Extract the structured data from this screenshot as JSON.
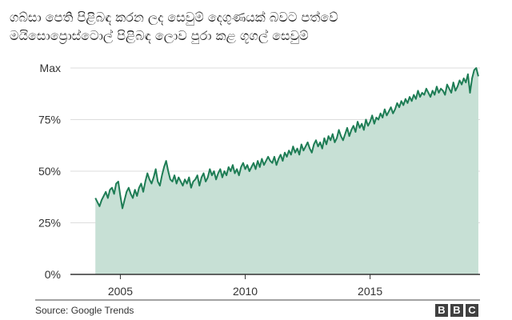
{
  "header": {
    "title_line1": "ගබ්සා පෙති පිළිබඳ කරන ලද සෙවුම් දෙගුණයක් බවට පත්වේ",
    "title_line2": "මයිසොප්‍රොස්ටොල් පිළිබඳ ලොව පුරා කළ ගූගල් සෙවුම්"
  },
  "footer": {
    "source": "Source: Google Trends",
    "logo_letters": [
      "B",
      "B",
      "C"
    ]
  },
  "colors": {
    "line": "#1e7d55",
    "fill": "#c7e0d5",
    "axis": "#333333",
    "grid": "#dddddd"
  },
  "chart_data": {
    "type": "area",
    "title": "ගබ්සා පෙති පිළිබඳ කරන ලද සෙවුම් දෙගුණයක් බවට පත්වේ / මයිසොප්‍රොස්ටොල් පිළිබඳ ලොව පුරා කළ ගූගල් සෙවුම්",
    "xlabel": "",
    "ylabel": "",
    "x_start": 2004.0,
    "x_step": 0.0833333,
    "xlim": [
      2003.0,
      2019.4
    ],
    "ylim": [
      0,
      100
    ],
    "x_ticks": [
      2005,
      2010,
      2015
    ],
    "y_ticks": [
      {
        "value": 0,
        "label": "0%"
      },
      {
        "value": 25,
        "label": "25%"
      },
      {
        "value": 50,
        "label": "50%"
      },
      {
        "value": 75,
        "label": "75%"
      },
      {
        "value": 100,
        "label": "Max"
      }
    ],
    "series": [
      {
        "name": "Misoprostol searches",
        "values": [
          37,
          35,
          33,
          36,
          38,
          40,
          37,
          41,
          42,
          39,
          44,
          45,
          38,
          32,
          36,
          40,
          42,
          39,
          37,
          41,
          38,
          42,
          44,
          40,
          45,
          49,
          46,
          44,
          47,
          51,
          45,
          43,
          48,
          52,
          55,
          50,
          46,
          45,
          48,
          44,
          47,
          45,
          43,
          46,
          44,
          47,
          42,
          45,
          46,
          48,
          43,
          47,
          49,
          45,
          47,
          51,
          48,
          50,
          46,
          49,
          51,
          47,
          50,
          48,
          52,
          50,
          53,
          49,
          51,
          48,
          52,
          54,
          51,
          53,
          50,
          52,
          54,
          51,
          55,
          52,
          56,
          53,
          55,
          57,
          55,
          54,
          57,
          53,
          56,
          58,
          55,
          59,
          57,
          60,
          58,
          62,
          59,
          61,
          58,
          63,
          60,
          62,
          64,
          61,
          59,
          63,
          65,
          62,
          64,
          61,
          66,
          63,
          67,
          65,
          68,
          64,
          66,
          70,
          67,
          65,
          68,
          71,
          67,
          70,
          72,
          69,
          74,
          71,
          73,
          70,
          75,
          72,
          74,
          77,
          73,
          76,
          75,
          78,
          76,
          80,
          77,
          79,
          81,
          78,
          80,
          83,
          81,
          84,
          82,
          85,
          83,
          86,
          84,
          87,
          85,
          89,
          86,
          88,
          87,
          90,
          88,
          86,
          89,
          87,
          91,
          88,
          90,
          89,
          87,
          92,
          90,
          88,
          93,
          89,
          91,
          94,
          92,
          95,
          93,
          97,
          88,
          95,
          99,
          100,
          96
        ]
      }
    ]
  }
}
